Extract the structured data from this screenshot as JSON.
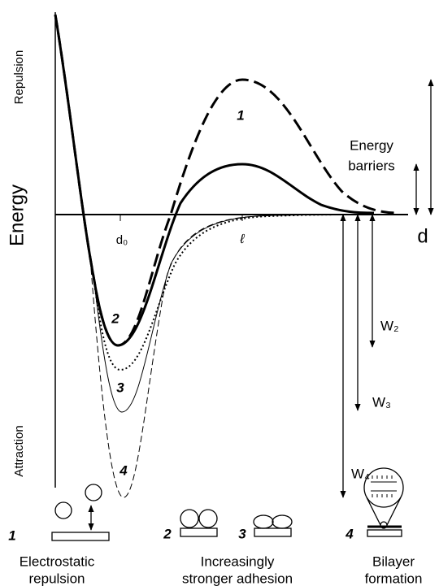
{
  "axes": {
    "y_label": "Energy",
    "y_top": "Repulsion",
    "y_bottom": "Attraction",
    "x_label": "d",
    "d0": "d₀",
    "ell": "ℓ"
  },
  "curve_labels": [
    "1",
    "2",
    "3",
    "4"
  ],
  "annotations": {
    "barriers": [
      "Energy",
      "barriers"
    ],
    "w2": "W₂",
    "w3": "W₃",
    "w4": "W₄"
  },
  "stages": [
    {
      "number": "1",
      "lines": [
        "Electrostatic",
        "repulsion"
      ]
    },
    {
      "number": "2"
    },
    {
      "number": "3",
      "lines": [
        "Increasingly",
        "stronger adhesion"
      ]
    },
    {
      "number": "4",
      "lines": [
        "Bilayer",
        "formation"
      ]
    }
  ]
}
